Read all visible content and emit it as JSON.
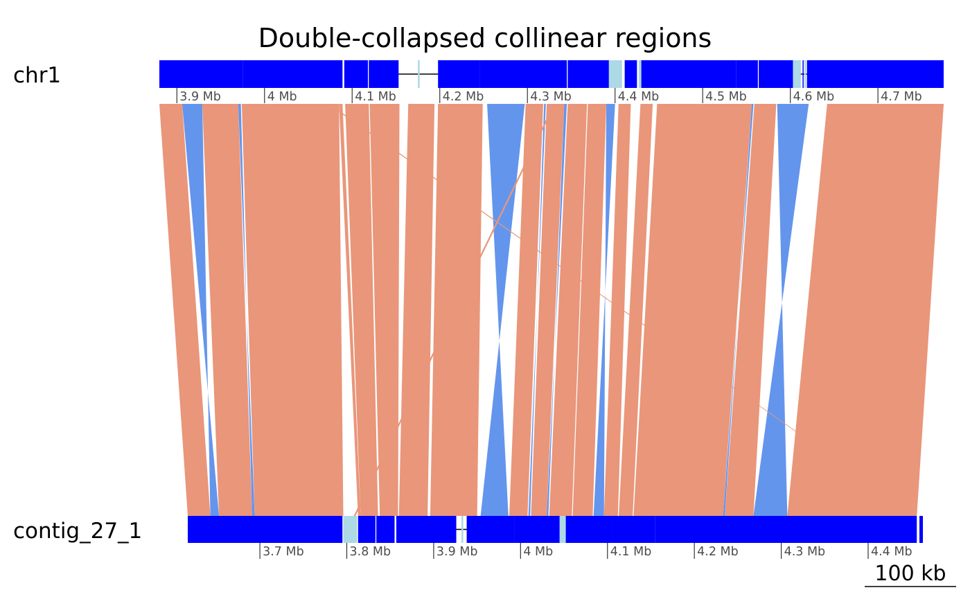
{
  "chart_data": {
    "type": "synteny",
    "title": "Double-collapsed collinear regions",
    "scale_bar": {
      "label": "100 kb",
      "length_kb": 100
    },
    "colors": {
      "block": "#0000ff",
      "gap": "#add8e6",
      "backbone": "#000000",
      "forward": "#e9967a",
      "inverse": "#6495ed",
      "tick_text": "#4d4d4d"
    },
    "tracks": [
      {
        "name": "chr1",
        "role": "reference",
        "range_mb": [
          3.88,
          4.775
        ],
        "ticks": [
          {
            "mb": 3.9,
            "label": "3.9 Mb"
          },
          {
            "mb": 4.0,
            "label": "4 Mb"
          },
          {
            "mb": 4.1,
            "label": "4.1 Mb"
          },
          {
            "mb": 4.2,
            "label": "4.2 Mb"
          },
          {
            "mb": 4.3,
            "label": "4.3 Mb"
          },
          {
            "mb": 4.4,
            "label": "4.4 Mb"
          },
          {
            "mb": 4.5,
            "label": "4.5 Mb"
          },
          {
            "mb": 4.6,
            "label": "4.6 Mb"
          },
          {
            "mb": 4.7,
            "label": "4.7 Mb"
          }
        ],
        "blocks_mb": [
          [
            3.88,
            3.975
          ],
          [
            3.975,
            4.089
          ],
          [
            4.091,
            4.118
          ],
          [
            4.119,
            4.153
          ],
          [
            4.198,
            4.246
          ],
          [
            4.246,
            4.345
          ],
          [
            4.346,
            4.393
          ],
          [
            4.411,
            4.425
          ],
          [
            4.429,
            4.538
          ],
          [
            4.538,
            4.563
          ],
          [
            4.564,
            4.603
          ],
          [
            4.614,
            4.615
          ],
          [
            4.619,
            4.775
          ]
        ],
        "gaps_mb": [
          [
            4.175,
            4.177
          ],
          [
            4.393,
            4.408
          ],
          [
            4.427,
            4.43
          ],
          [
            4.603,
            4.612
          ],
          [
            4.616,
            4.618
          ]
        ],
        "backbone_mb": [
          [
            4.153,
            4.198
          ],
          [
            4.603,
            4.62
          ]
        ]
      },
      {
        "name": "contig_27_1",
        "role": "query",
        "range_mb": [
          3.617,
          4.463
        ],
        "ticks": [
          {
            "mb": 3.7,
            "label": "3.7 Mb"
          },
          {
            "mb": 3.8,
            "label": "3.8 Mb"
          },
          {
            "mb": 3.9,
            "label": "3.9 Mb"
          },
          {
            "mb": 4.0,
            "label": "4 Mb"
          },
          {
            "mb": 4.1,
            "label": "4.1 Mb"
          },
          {
            "mb": 4.2,
            "label": "4.2 Mb"
          },
          {
            "mb": 4.3,
            "label": "4.3 Mb"
          },
          {
            "mb": 4.4,
            "label": "4.4 Mb"
          }
        ],
        "blocks_mb": [
          [
            3.617,
            3.795
          ],
          [
            3.813,
            3.833
          ],
          [
            3.834,
            3.855
          ],
          [
            3.857,
            3.926
          ],
          [
            3.938,
            3.993
          ],
          [
            3.993,
            4.045
          ],
          [
            4.052,
            4.105
          ],
          [
            4.105,
            4.155
          ],
          [
            4.155,
            4.456
          ],
          [
            4.459,
            4.463
          ]
        ],
        "gaps_mb": [
          [
            3.796,
            3.812
          ],
          [
            4.045,
            4.052
          ],
          [
            3.932,
            3.934
          ]
        ],
        "backbone_mb": [
          [
            3.926,
            3.938
          ]
        ]
      }
    ],
    "alignments": [
      {
        "ref": [
          3.88,
          3.906
        ],
        "query": [
          3.617,
          3.643
        ],
        "orientation": "forward"
      },
      {
        "ref": [
          3.906,
          3.929
        ],
        "query": [
          3.643,
          3.653
        ],
        "orientation": "inverse"
      },
      {
        "ref": [
          3.929,
          3.97
        ],
        "query": [
          3.653,
          3.691
        ],
        "orientation": "forward"
      },
      {
        "ref": [
          3.97,
          3.973
        ],
        "query": [
          3.691,
          3.694
        ],
        "orientation": "inverse"
      },
      {
        "ref": [
          3.974,
          4.085
        ],
        "query": [
          3.694,
          3.796
        ],
        "orientation": "forward"
      },
      {
        "ref": [
          4.085,
          4.089
        ],
        "query": [
          3.813,
          3.816
        ],
        "orientation": "forward"
      },
      {
        "ref": [
          4.092,
          4.119
        ],
        "query": [
          3.816,
          3.836
        ],
        "orientation": "forward"
      },
      {
        "ref": [
          4.12,
          4.154
        ],
        "query": [
          3.838,
          3.859
        ],
        "orientation": "forward"
      },
      {
        "ref": [
          4.164,
          4.194
        ],
        "query": [
          3.86,
          3.893
        ],
        "orientation": "forward"
      },
      {
        "ref": [
          4.198,
          4.249
        ],
        "query": [
          3.896,
          3.95
        ],
        "orientation": "forward"
      },
      {
        "ref": [
          4.254,
          4.297
        ],
        "query": [
          3.954,
          3.986
        ],
        "orientation": "inverse"
      },
      {
        "ref": [
          4.298,
          4.318
        ],
        "query": [
          3.987,
          4.008
        ],
        "orientation": "forward"
      },
      {
        "ref": [
          4.319,
          4.321
        ],
        "query": [
          4.009,
          4.011
        ],
        "orientation": "inverse"
      },
      {
        "ref": [
          4.322,
          4.342
        ],
        "query": [
          4.012,
          4.03
        ],
        "orientation": "forward"
      },
      {
        "ref": [
          4.342,
          4.345
        ],
        "query": [
          4.03,
          4.032
        ],
        "orientation": "inverse"
      },
      {
        "ref": [
          4.346,
          4.368
        ],
        "query": [
          4.033,
          4.059
        ],
        "orientation": "forward"
      },
      {
        "ref": [
          4.369,
          4.39
        ],
        "query": [
          4.06,
          4.083
        ],
        "orientation": "forward"
      },
      {
        "ref": [
          4.39,
          4.4
        ],
        "query": [
          4.084,
          4.096
        ],
        "orientation": "inverse"
      },
      {
        "ref": [
          4.404,
          4.418
        ],
        "query": [
          4.096,
          4.112
        ],
        "orientation": "forward"
      },
      {
        "ref": [
          4.429,
          4.443
        ],
        "query": [
          4.113,
          4.129
        ],
        "orientation": "forward"
      },
      {
        "ref": [
          4.448,
          4.556
        ],
        "query": [
          4.13,
          4.233
        ],
        "orientation": "forward"
      },
      {
        "ref": [
          4.556,
          4.558
        ],
        "query": [
          4.233,
          4.235
        ],
        "orientation": "inverse"
      },
      {
        "ref": [
          4.559,
          4.584
        ],
        "query": [
          4.235,
          4.268
        ],
        "orientation": "forward"
      },
      {
        "ref": [
          4.585,
          4.621
        ],
        "query": [
          4.268,
          4.307
        ],
        "orientation": "inverse"
      },
      {
        "ref": [
          4.642,
          4.775
        ],
        "query": [
          4.307,
          4.453
        ],
        "orientation": "forward"
      },
      {
        "ref": [
          4.773,
          4.775
        ],
        "query": [
          4.453,
          4.456
        ],
        "orientation": "forward"
      },
      {
        "ref": [
          4.072,
          4.074
        ],
        "query": [
          4.455,
          4.456
        ],
        "orientation": "forward"
      },
      {
        "ref": [
          4.33,
          4.332
        ],
        "query": [
          3.808,
          3.81
        ],
        "orientation": "forward"
      }
    ]
  }
}
